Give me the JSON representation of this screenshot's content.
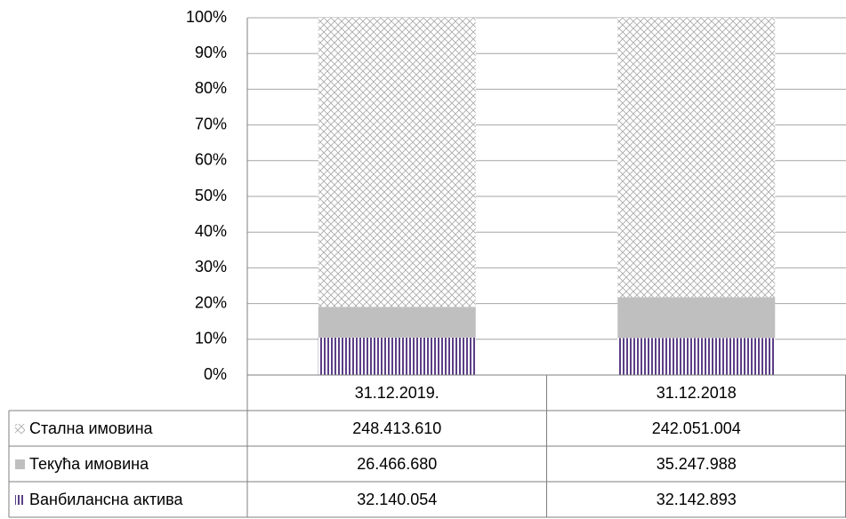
{
  "chart_data": {
    "type": "bar",
    "stacking": "percent",
    "categories": [
      "31.12.2019.",
      "31.12.2018"
    ],
    "series": [
      {
        "name": "Стална имовина",
        "color": "#b0b0b0",
        "pattern": "crosshatch",
        "values": [
          248413610,
          242051004
        ],
        "value_labels": [
          "248.413.610",
          "242.051.004"
        ]
      },
      {
        "name": "Текућа имовина",
        "color": "#bfbfbf",
        "pattern": "solid",
        "values": [
          26466680,
          35247988
        ],
        "value_labels": [
          "26.466.680",
          "35.247.988"
        ]
      },
      {
        "name": "Ванбилансна актива",
        "color": "#5b3f86",
        "pattern": "vertical",
        "values": [
          32140054,
          32142893
        ],
        "value_labels": [
          "32.140.054",
          "32.142.893"
        ]
      }
    ],
    "ylim": [
      0,
      100
    ],
    "yticks": [
      {
        "value": 0,
        "label": "0%"
      },
      {
        "value": 10,
        "label": "10%"
      },
      {
        "value": 20,
        "label": "20%"
      },
      {
        "value": 30,
        "label": "30%"
      },
      {
        "value": 40,
        "label": "40%"
      },
      {
        "value": 50,
        "label": "50%"
      },
      {
        "value": 60,
        "label": "60%"
      },
      {
        "value": 70,
        "label": "70%"
      },
      {
        "value": 80,
        "label": "80%"
      },
      {
        "value": 90,
        "label": "90%"
      },
      {
        "value": 100,
        "label": "100%"
      }
    ],
    "grid": true,
    "data_table": true
  }
}
